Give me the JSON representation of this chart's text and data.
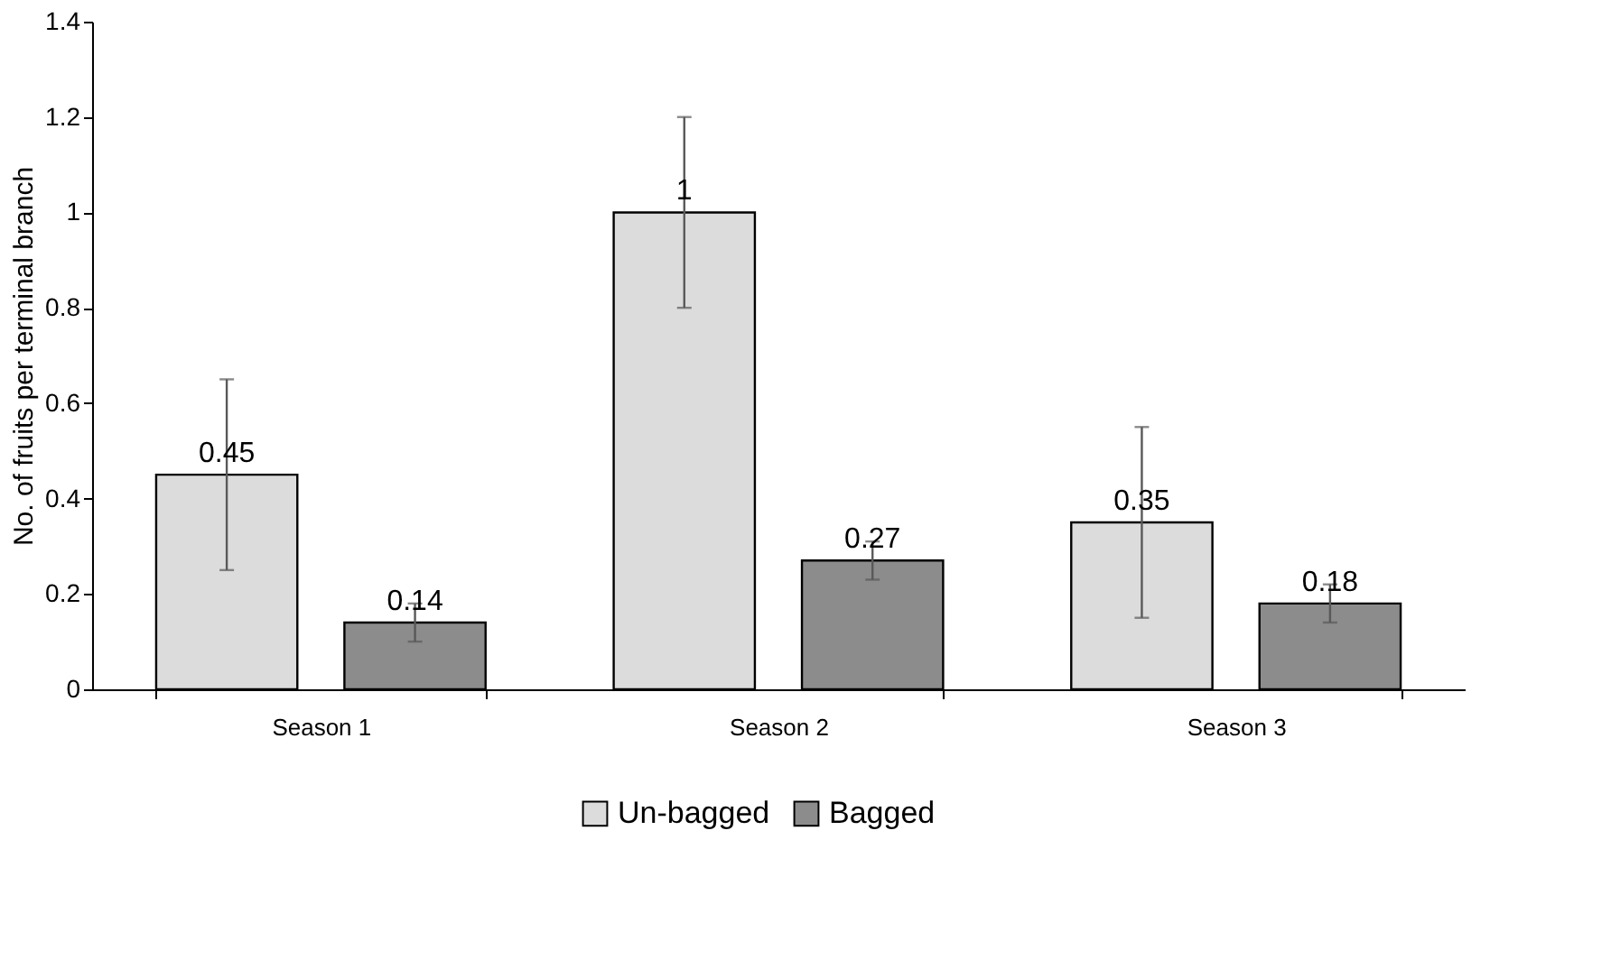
{
  "chart_data": {
    "type": "bar",
    "ylabel": "No. of fruits per terminal branch",
    "categories": [
      "Season 1",
      "Season 2",
      "Season 3"
    ],
    "series": [
      {
        "name": "Un-bagged",
        "color": "#dcdcdc",
        "values": [
          0.45,
          1,
          0.35
        ],
        "errors": [
          0.2,
          0.2,
          0.2
        ]
      },
      {
        "name": "Bagged",
        "color": "#8c8c8c",
        "values": [
          0.14,
          0.27,
          0.18
        ],
        "errors": [
          0.04,
          0.04,
          0.04
        ]
      }
    ],
    "ylim": [
      0,
      1.4
    ],
    "yticks": [
      0,
      0.2,
      0.4,
      0.6,
      0.8,
      1,
      1.2,
      1.4
    ],
    "grid": false,
    "legend": "bottom",
    "data_labels": true
  }
}
